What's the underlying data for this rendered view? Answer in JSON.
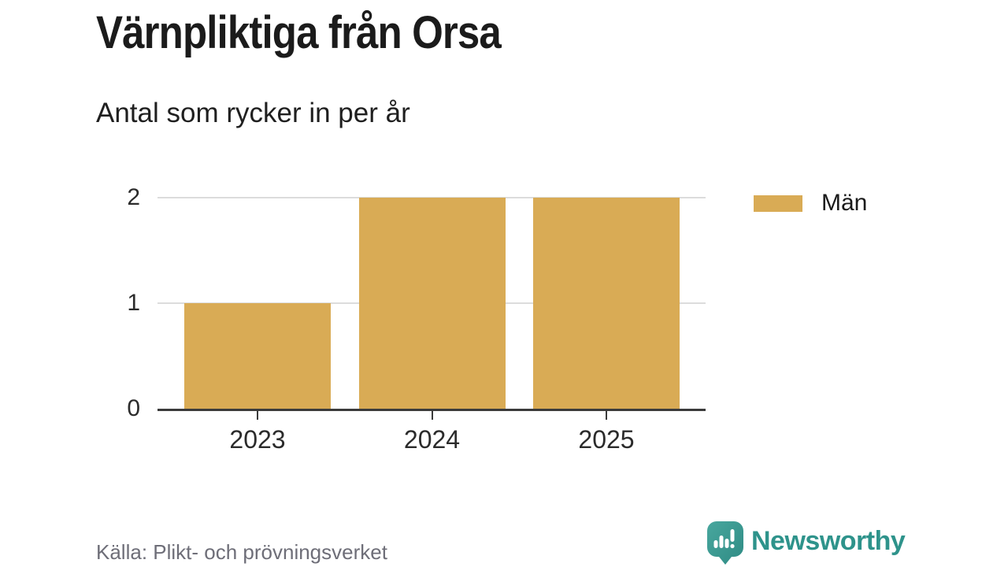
{
  "header": {
    "title": "Värnpliktiga från Orsa",
    "subtitle": "Antal som rycker in per år"
  },
  "chart_data": {
    "type": "bar",
    "categories": [
      "2023",
      "2024",
      "2025"
    ],
    "series": [
      {
        "name": "Män",
        "values": [
          1,
          2,
          2
        ],
        "color": "#d9ab55"
      }
    ],
    "title": "Värnpliktiga från Orsa",
    "subtitle": "Antal som rycker in per år",
    "xlabel": "",
    "ylabel": "",
    "ylim": [
      0,
      2
    ],
    "yticks": [
      0,
      1,
      2
    ],
    "grid": true,
    "legend_position": "right"
  },
  "legend": {
    "items": [
      {
        "label": "Män",
        "color": "#d9ab55"
      }
    ]
  },
  "footer": {
    "source": "Källa: Plikt- och prövningsverket",
    "brand": "Newsworthy"
  },
  "colors": {
    "bar_gold": "#d9ab55",
    "brand_teal": "#2e938b",
    "axis": "#3b3b3b",
    "gridline": "#dcdcdc",
    "source_text": "#6e6e78"
  },
  "icons": {
    "brand_icon": "speech-bubble-bar-chart-exclamation-icon"
  }
}
